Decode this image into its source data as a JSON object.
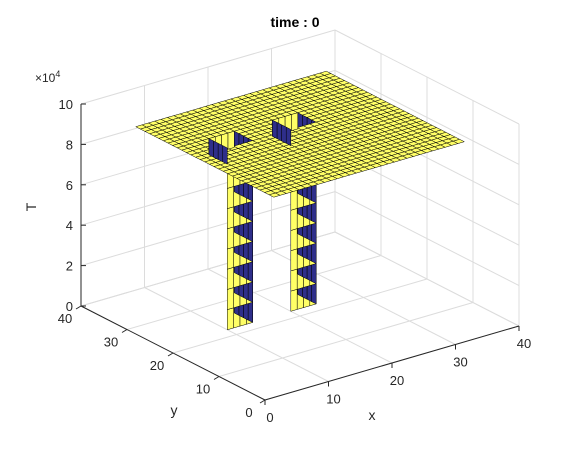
{
  "chart_data": {
    "type": "surface",
    "title": "time : 0",
    "xlabel": "x",
    "ylabel": "y",
    "zlabel": "T",
    "z_multiplier_label": "×10",
    "z_multiplier_exponent": "4",
    "xlim": [
      0,
      40
    ],
    "ylim": [
      0,
      40
    ],
    "zlim": [
      0,
      100000
    ],
    "x_ticks": [
      "0",
      "10",
      "20",
      "30",
      "40"
    ],
    "y_ticks": [
      "0",
      "10",
      "20",
      "30",
      "40"
    ],
    "z_ticks": [
      "0",
      "2",
      "4",
      "6",
      "8",
      "10"
    ],
    "grid": true,
    "colors": {
      "high": "#ffff66",
      "low": "#2e2e8a",
      "edge": "#000000",
      "axis": "#262626",
      "grid": "#dcdcdc"
    },
    "surface": {
      "z_plateau": 90000,
      "z_well": 0,
      "x_range": [
        5,
        35
      ],
      "y_range": [
        5,
        35
      ]
    },
    "wells": [
      {
        "x": [
          10,
          14
        ],
        "y": [
          22,
          26
        ]
      },
      {
        "x": [
          20,
          24
        ],
        "y": [
          22,
          26
        ]
      }
    ]
  }
}
